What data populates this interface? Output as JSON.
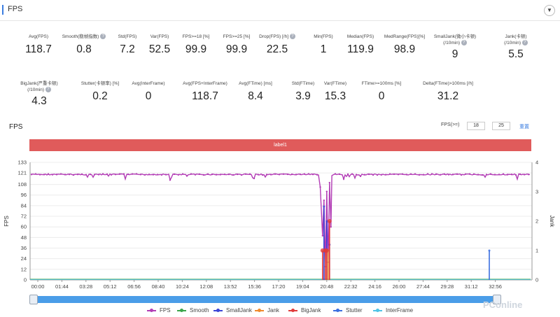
{
  "header": {
    "title": "FPS",
    "collapse_icon": "chevron-down-icon"
  },
  "metrics_row1": [
    {
      "label": "Avg(FPS)",
      "value": "118.7",
      "help": false
    },
    {
      "label": "Smooth(稳帧指数)",
      "value": "0.8",
      "help": true
    },
    {
      "label": "Std(FPS)",
      "value": "7.2",
      "help": false
    },
    {
      "label": "Var(FPS)",
      "value": "52.5",
      "help": false
    },
    {
      "label": "FPS>=18 [%]",
      "value": "99.9",
      "help": false
    },
    {
      "label": "FPS>=25 [%]",
      "value": "99.9",
      "help": false
    },
    {
      "label": "Drop(FPS) [/h]",
      "value": "22.5",
      "help": true
    },
    {
      "label": "Min(FPS)",
      "value": "1",
      "help": false
    },
    {
      "label": "Median(FPS)",
      "value": "119.9",
      "help": false
    },
    {
      "label": "MedRange(FPS)[%]",
      "value": "98.9",
      "help": false
    },
    {
      "label": "SmallJank(微小卡顿)",
      "label2": "(/10min)",
      "value": "9",
      "help": true
    },
    {
      "label": "Jank(卡顿)",
      "label2": "(/10min)",
      "value": "5.5",
      "help": true
    }
  ],
  "metrics_row2": [
    {
      "label": "BigJank(严重卡顿)",
      "label2": "(/10min)",
      "value": "4.3",
      "help": true
    },
    {
      "label": "Stutter(卡顿率) [%]",
      "value": "0.2",
      "help": false
    },
    {
      "label": "Avg(InterFrame)",
      "value": "0",
      "help": false
    },
    {
      "label": "Avg(FPS+InterFrame)",
      "value": "118.7",
      "help": false
    },
    {
      "label": "Avg(FTime) [ms]",
      "value": "8.4",
      "help": false
    },
    {
      "label": "Std(FTime)",
      "value": "3.9",
      "help": false
    },
    {
      "label": "Var(FTime)",
      "value": "15.3",
      "help": false
    },
    {
      "label": "FTime>=100ms [%]",
      "value": "0",
      "help": false
    },
    {
      "label": "Delta(FTime)>100ms [/h]",
      "value": "31.2",
      "help": false
    }
  ],
  "chart_section": {
    "title": "FPS",
    "fps_threshold_label": "FPS(>=)",
    "fps_threshold_1": "18",
    "fps_threshold_2": "25",
    "reset_label": "重置",
    "band_label": "label1"
  },
  "colors": {
    "FPS": "#b23cb5",
    "Smooth": "#3aa54a",
    "SmallJank": "#3b45d6",
    "Jank": "#f08a2c",
    "BigJank": "#e03a3a",
    "Stutter": "#3b6fe0",
    "InterFrame": "#4fc3e6",
    "band": "#e05b5b",
    "scroll": "#4a9de8"
  },
  "chart_data": {
    "type": "line",
    "xlabel": "",
    "ylabel": "FPS",
    "ylabel_right": "Jank",
    "x_ticks": [
      "00:00",
      "01:44",
      "03:28",
      "05:12",
      "06:56",
      "08:40",
      "10:24",
      "12:08",
      "13:52",
      "15:36",
      "17:20",
      "19:04",
      "20:48",
      "22:32",
      "24:16",
      "26:00",
      "27:44",
      "29:28",
      "31:12",
      "32:56"
    ],
    "y_ticks": [
      0,
      12,
      24,
      36,
      48,
      60,
      72,
      84,
      96,
      108,
      121,
      133
    ],
    "y_ticks_right": [
      0,
      1,
      2,
      3,
      4
    ],
    "ylim": [
      0,
      133
    ],
    "ylim_right": [
      0,
      4
    ],
    "series": [
      {
        "name": "FPS",
        "axis": "left",
        "typical": 119.9,
        "dips": [
          {
            "t": "20:20",
            "value": 105
          },
          {
            "t": "20:30",
            "value": 50
          },
          {
            "t": "20:36",
            "value": 90
          },
          {
            "t": "20:42",
            "value": 15
          },
          {
            "t": "20:48",
            "value": 100
          },
          {
            "t": "20:54",
            "value": 20
          },
          {
            "t": "21:00",
            "value": 110
          },
          {
            "t": "21:06",
            "value": 60
          },
          {
            "t": "21:10",
            "value": 118
          }
        ]
      },
      {
        "name": "Smooth",
        "axis": "right",
        "typical": 0
      },
      {
        "name": "SmallJank",
        "axis": "right",
        "spikes": [
          {
            "t": "20:36",
            "value": 2.5
          },
          {
            "t": "20:48",
            "value": 2.0
          },
          {
            "t": "21:00",
            "value": 1.2
          }
        ]
      },
      {
        "name": "Jank",
        "axis": "right",
        "spikes": [
          {
            "t": "20:42",
            "value": 1.0
          },
          {
            "t": "20:54",
            "value": 1.0
          }
        ]
      },
      {
        "name": "BigJank",
        "axis": "right",
        "spikes": [
          {
            "t": "20:30",
            "value": 1.0
          },
          {
            "t": "20:42",
            "value": 1.0
          },
          {
            "t": "20:48",
            "value": 1.0
          },
          {
            "t": "21:00",
            "value": 2.0
          }
        ]
      },
      {
        "name": "Stutter",
        "axis": "right",
        "spikes": [
          {
            "t": "32:30",
            "value": 1.0
          }
        ]
      },
      {
        "name": "InterFrame",
        "axis": "right",
        "typical": 0
      }
    ],
    "legend_position": "bottom"
  },
  "legend": [
    "FPS",
    "Smooth",
    "SmallJank",
    "Jank",
    "BigJank",
    "Stutter",
    "InterFrame"
  ],
  "watermark": "PConline"
}
